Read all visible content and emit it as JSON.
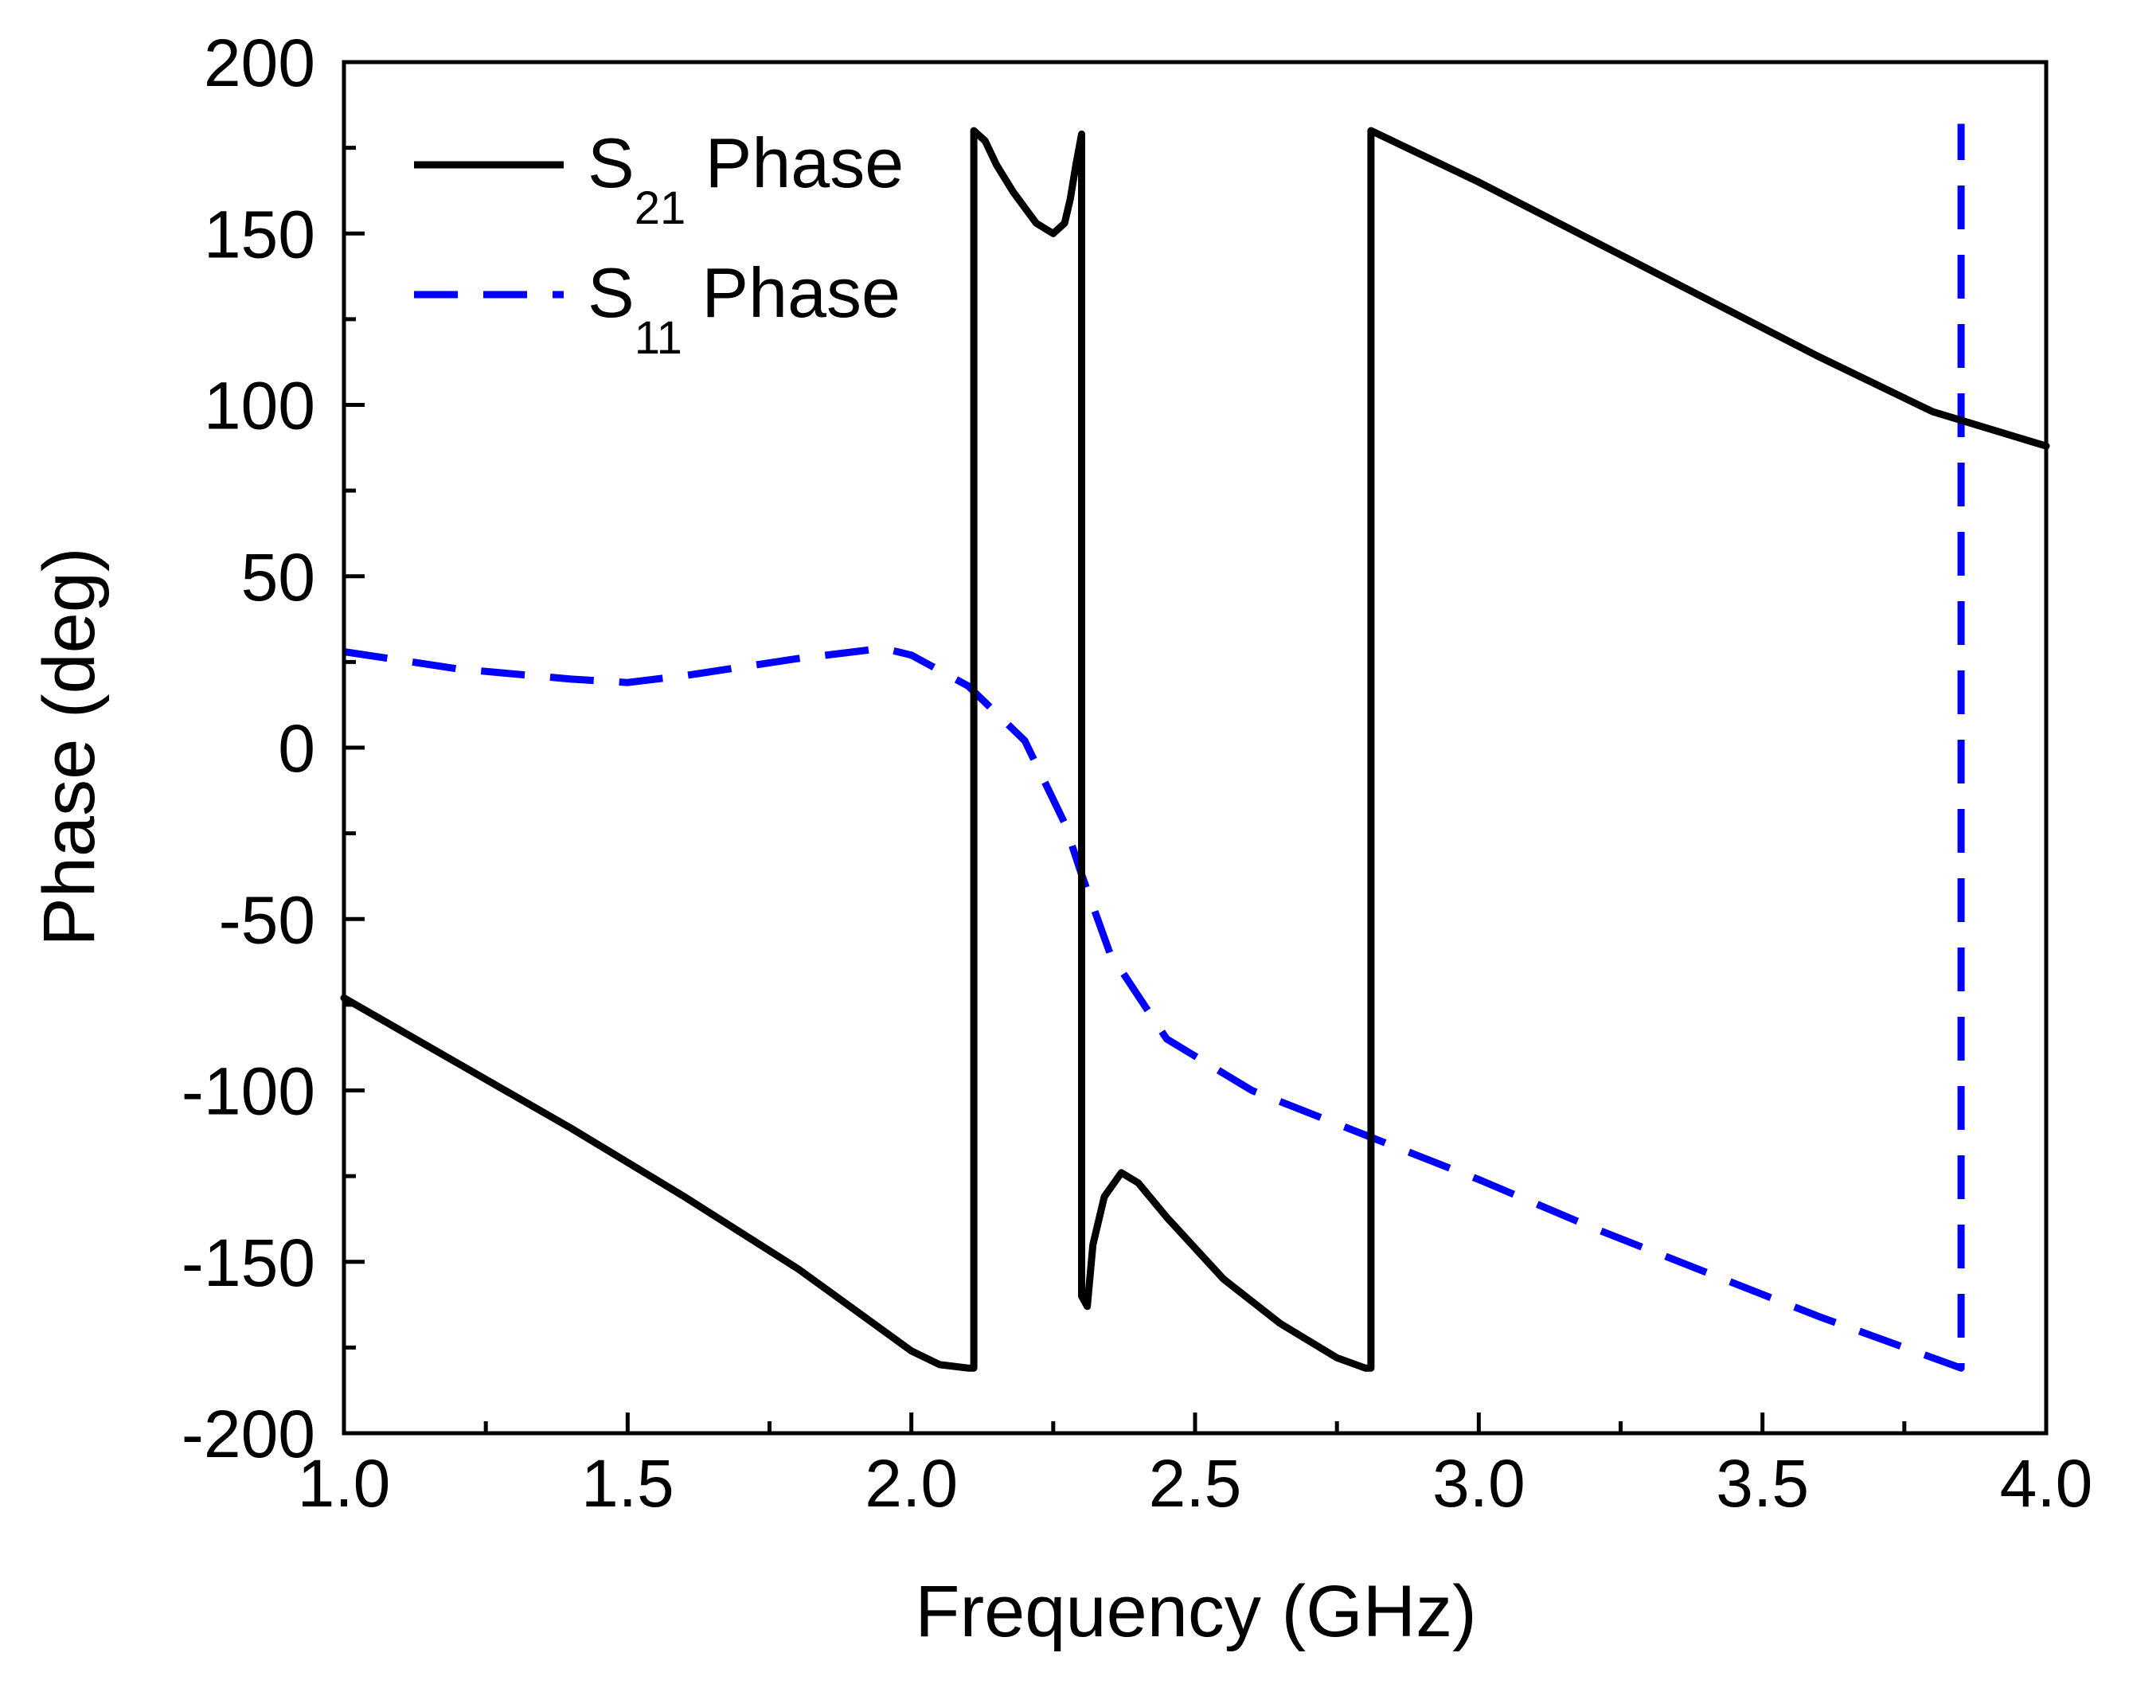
{
  "chart_data": {
    "type": "line",
    "title": "",
    "xlabel": "Frequency (GHz)",
    "ylabel": "Phase (deg)",
    "xlim": [
      1.0,
      4.0
    ],
    "ylim": [
      -200,
      200
    ],
    "x_ticks": [
      "1.0",
      "1.5",
      "2.0",
      "2.5",
      "3.0",
      "3.5",
      "4.0"
    ],
    "y_ticks": [
      "-200",
      "-150",
      "-100",
      "-50",
      "0",
      "50",
      "100",
      "150",
      "200"
    ],
    "grid": false,
    "legend_position": "top-left",
    "series": [
      {
        "name": "S21 Phase",
        "legend_main": "S",
        "legend_sub": "21",
        "legend_rest": " Phase",
        "color": "#000000",
        "style": "solid",
        "x": [
          1.0,
          1.2,
          1.4,
          1.6,
          1.8,
          1.9,
          2.0,
          2.05,
          2.1,
          2.11,
          2.11,
          2.13,
          2.15,
          2.18,
          2.22,
          2.25,
          2.27,
          2.28,
          2.29,
          2.3,
          2.3,
          2.31,
          2.32,
          2.34,
          2.37,
          2.4,
          2.45,
          2.55,
          2.65,
          2.75,
          2.8,
          2.81,
          2.81,
          3.0,
          3.2,
          3.4,
          3.6,
          3.8,
          4.0
        ],
        "y": [
          -73,
          -92,
          -111,
          -131,
          -152,
          -164,
          -176,
          -180,
          -181,
          -181,
          180,
          177,
          170,
          162,
          153,
          150,
          153,
          160,
          170,
          179,
          -160,
          -163,
          -145,
          -131,
          -124,
          -127,
          -137,
          -155,
          -168,
          -178,
          -181,
          -181,
          180,
          165,
          148,
          131,
          114,
          98,
          88
        ]
      },
      {
        "name": "S11 Phase",
        "legend_main": "S",
        "legend_sub": "11",
        "legend_rest": " Phase",
        "color": "#0000ff",
        "style": "dashed",
        "x": [
          1.0,
          1.2,
          1.4,
          1.5,
          1.6,
          1.8,
          1.95,
          2.0,
          2.1,
          2.2,
          2.27,
          2.3,
          2.35,
          2.45,
          2.6,
          2.8,
          3.0,
          3.2,
          3.4,
          3.6,
          3.85,
          3.85,
          3.85
        ],
        "y": [
          28,
          23,
          20,
          19,
          21,
          26,
          29,
          27,
          18,
          2,
          -22,
          -37,
          -60,
          -85,
          -100,
          -113,
          -126,
          -140,
          -153,
          -166,
          -181,
          -170,
          182
        ]
      }
    ]
  }
}
